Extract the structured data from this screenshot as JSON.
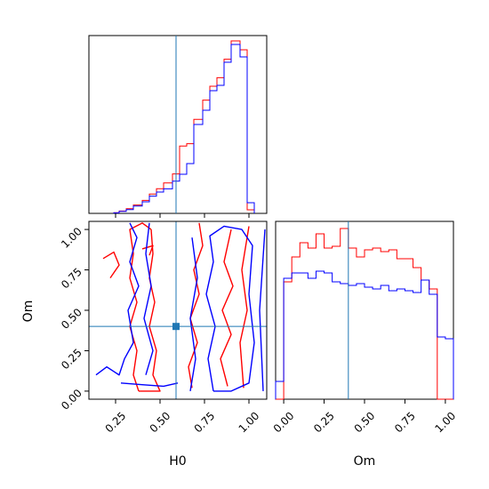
{
  "chart_data": {
    "type": "corner",
    "parameters": [
      "H0",
      "Om"
    ],
    "truth": {
      "H0": 0.59,
      "Om": 0.4
    },
    "colors": {
      "series_a": "#ff0000",
      "series_b": "#0000ff",
      "truth": "#1f77b4"
    },
    "panels": [
      {
        "id": "hist-H0",
        "type": "histogram",
        "parameter": "H0",
        "xlim": [
          0.1,
          1.1
        ],
        "xticks": [
          0.25,
          0.5,
          0.75,
          1.0
        ],
        "bin_edges": [
          0.24,
          0.27,
          0.31,
          0.35,
          0.4,
          0.44,
          0.48,
          0.52,
          0.57,
          0.61,
          0.65,
          0.69,
          0.74,
          0.78,
          0.82,
          0.86,
          0.9,
          0.95,
          0.99,
          1.03
        ],
        "series": [
          {
            "color": "red",
            "values": [
              0.4,
              1.3,
              2.6,
              4.7,
              7.3,
              10.9,
              13.9,
              17.1,
              22.2,
              37.9,
              39.2,
              52.9,
              63.7,
              71.5,
              76.3,
              86.7,
              97.0,
              92.0,
              2.0
            ]
          },
          {
            "color": "blue",
            "values": [
              0.3,
              1.1,
              2.1,
              4.1,
              6.5,
              9.7,
              12.0,
              13.8,
              18.1,
              22.0,
              28.0,
              50.0,
              58.0,
              69.0,
              72.0,
              85.0,
              95.0,
              88.0,
              6.0
            ]
          }
        ]
      },
      {
        "id": "contour-H0-Om",
        "type": "contour",
        "xparameter": "H0",
        "yparameter": "Om",
        "xlim": [
          0.1,
          1.1
        ],
        "ylim": [
          -0.05,
          1.05
        ],
        "xticks": [
          0.25,
          0.5,
          0.75,
          1.0
        ],
        "xtick_labels": [
          "0.25",
          "0.50",
          "0.75",
          "1.00"
        ],
        "yticks": [
          0.0,
          0.25,
          0.5,
          0.75,
          1.0
        ],
        "ytick_labels": [
          "0.00",
          "0.25",
          "0.50",
          "0.75",
          "1.00"
        ],
        "ylabel": "Om",
        "xlabel": "H0",
        "contours": [
          {
            "color": "red",
            "points": [
              [
                0.38,
                0.0
              ],
              [
                0.35,
                0.1
              ],
              [
                0.37,
                0.25
              ],
              [
                0.33,
                0.4
              ],
              [
                0.37,
                0.55
              ],
              [
                0.33,
                0.7
              ],
              [
                0.35,
                0.85
              ],
              [
                0.33,
                1.0
              ],
              [
                0.4,
                1.04
              ],
              [
                0.45,
                1.0
              ]
            ]
          },
          {
            "color": "red",
            "points": [
              [
                0.45,
                1.0
              ],
              [
                0.46,
                0.85
              ],
              [
                0.44,
                0.7
              ],
              [
                0.47,
                0.55
              ],
              [
                0.44,
                0.4
              ],
              [
                0.48,
                0.25
              ],
              [
                0.46,
                0.1
              ],
              [
                0.5,
                0.0
              ],
              [
                0.38,
                0.0
              ]
            ]
          },
          {
            "color": "red",
            "points": [
              [
                0.68,
                0.02
              ],
              [
                0.66,
                0.15
              ],
              [
                0.71,
                0.3
              ],
              [
                0.67,
                0.45
              ],
              [
                0.72,
                0.6
              ],
              [
                0.69,
                0.75
              ],
              [
                0.74,
                0.9
              ],
              [
                0.72,
                1.04
              ]
            ]
          },
          {
            "color": "red",
            "points": [
              [
                0.88,
                0.03
              ],
              [
                0.84,
                0.2
              ],
              [
                0.9,
                0.35
              ],
              [
                0.85,
                0.5
              ],
              [
                0.91,
                0.65
              ],
              [
                0.86,
                0.8
              ],
              [
                0.9,
                1.0
              ]
            ]
          },
          {
            "color": "red",
            "points": [
              [
                0.97,
                0.02
              ],
              [
                0.95,
                0.3
              ],
              [
                0.99,
                0.5
              ],
              [
                0.96,
                0.75
              ],
              [
                1.0,
                1.02
              ]
            ]
          },
          {
            "color": "red",
            "points": [
              [
                0.18,
                0.82
              ],
              [
                0.24,
                0.86
              ],
              [
                0.27,
                0.78
              ],
              [
                0.22,
                0.7
              ]
            ]
          },
          {
            "color": "red",
            "points": [
              [
                0.4,
                0.88
              ],
              [
                0.46,
                0.9
              ],
              [
                0.44,
                0.84
              ]
            ]
          },
          {
            "color": "blue",
            "points": [
              [
                0.14,
                0.1
              ],
              [
                0.2,
                0.15
              ],
              [
                0.27,
                0.1
              ],
              [
                0.3,
                0.2
              ],
              [
                0.35,
                0.3
              ],
              [
                0.32,
                0.5
              ],
              [
                0.38,
                0.65
              ],
              [
                0.33,
                0.8
              ],
              [
                0.37,
                0.95
              ],
              [
                0.33,
                1.04
              ]
            ]
          },
          {
            "color": "blue",
            "points": [
              [
                0.28,
                0.05
              ],
              [
                0.4,
                0.04
              ],
              [
                0.52,
                0.03
              ],
              [
                0.6,
                0.05
              ]
            ]
          },
          {
            "color": "blue",
            "points": [
              [
                0.44,
                1.04
              ],
              [
                0.42,
                0.85
              ],
              [
                0.45,
                0.65
              ],
              [
                0.41,
                0.45
              ],
              [
                0.46,
                0.25
              ],
              [
                0.42,
                0.1
              ]
            ]
          },
          {
            "color": "blue",
            "points": [
              [
                0.8,
                0.0
              ],
              [
                0.77,
                0.2
              ],
              [
                0.81,
                0.4
              ],
              [
                0.76,
                0.6
              ],
              [
                0.8,
                0.8
              ],
              [
                0.78,
                0.96
              ],
              [
                0.86,
                1.02
              ],
              [
                0.96,
                1.0
              ],
              [
                1.02,
                0.9
              ],
              [
                1.0,
                0.6
              ],
              [
                1.03,
                0.3
              ],
              [
                1.0,
                0.05
              ],
              [
                0.9,
                0.0
              ],
              [
                0.8,
                0.0
              ]
            ]
          },
          {
            "color": "blue",
            "points": [
              [
                0.67,
                0.0
              ],
              [
                0.7,
                0.2
              ],
              [
                0.67,
                0.45
              ],
              [
                0.71,
                0.7
              ],
              [
                0.68,
                0.95
              ]
            ]
          },
          {
            "color": "blue",
            "points": [
              [
                1.08,
                0.0
              ],
              [
                1.06,
                0.5
              ],
              [
                1.09,
                1.0
              ]
            ]
          }
        ]
      },
      {
        "id": "hist-Om",
        "type": "histogram",
        "parameter": "Om",
        "xlim": [
          -0.05,
          1.05
        ],
        "xticks": [
          0.0,
          0.25,
          0.5,
          0.75,
          1.0
        ],
        "xtick_labels": [
          "0.00",
          "0.25",
          "0.50",
          "0.75",
          "1.00"
        ],
        "xlabel": "Om",
        "bin_edges": [
          -0.05,
          0.0,
          0.05,
          0.1,
          0.15,
          0.2,
          0.25,
          0.3,
          0.35,
          0.4,
          0.45,
          0.5,
          0.55,
          0.6,
          0.65,
          0.7,
          0.75,
          0.8,
          0.85,
          0.9,
          0.95,
          1.0,
          1.05
        ],
        "series": [
          {
            "color": "red",
            "values": [
              0,
              66,
              80,
              88,
              85,
              93,
              85,
              86,
              96,
              85,
              80,
              84,
              85,
              83,
              84,
              79,
              79,
              74,
              67,
              62,
              0,
              0
            ]
          },
          {
            "color": "blue",
            "values": [
              10,
              68,
              71,
              71,
              68,
              72,
              71,
              66,
              65,
              64,
              65,
              63,
              62,
              64,
              61,
              62,
              61,
              60,
              67,
              59,
              35,
              34
            ]
          }
        ]
      }
    ]
  }
}
